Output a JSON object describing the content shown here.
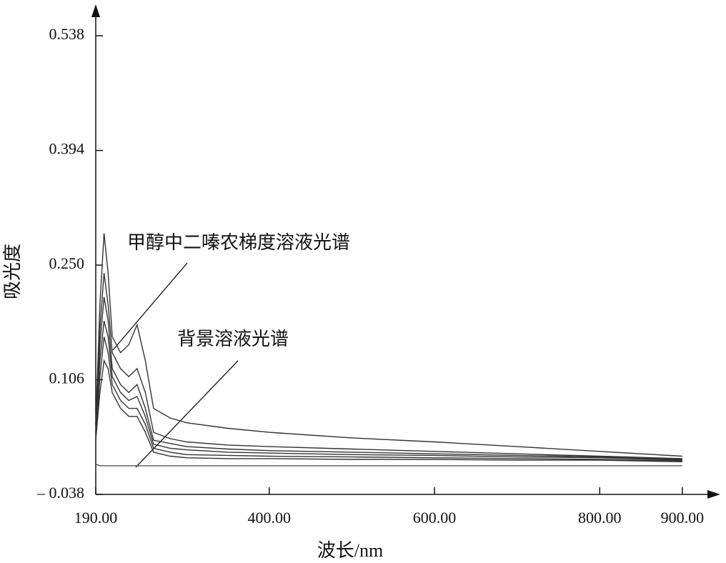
{
  "chart_data": {
    "type": "line",
    "xlabel": "波长/nm",
    "ylabel": "吸光度",
    "annotations": [
      "甲醇中二嗪农梯度溶液光谱",
      "背景溶液光谱"
    ],
    "x": [
      190,
      195,
      200,
      205,
      210,
      220,
      230,
      240,
      250,
      260,
      280,
      300,
      350,
      400,
      500,
      600,
      700,
      800,
      900
    ],
    "series": [
      {
        "color": "#333333",
        "values": [
          0.05,
          0.2,
          0.29,
          0.24,
          0.16,
          0.14,
          0.15,
          0.175,
          0.13,
          0.07,
          0.058,
          0.052,
          0.045,
          0.04,
          0.033,
          0.028,
          0.022,
          0.016,
          0.01
        ]
      },
      {
        "color": "#333333",
        "values": [
          0.05,
          0.17,
          0.24,
          0.2,
          0.14,
          0.12,
          0.11,
          0.12,
          0.09,
          0.04,
          0.032,
          0.028,
          0.024,
          0.022,
          0.019,
          0.016,
          0.013,
          0.01,
          0.007
        ]
      },
      {
        "color": "#333333",
        "values": [
          0.04,
          0.15,
          0.21,
          0.18,
          0.12,
          0.1,
          0.09,
          0.1,
          0.07,
          0.03,
          0.026,
          0.022,
          0.019,
          0.017,
          0.015,
          0.013,
          0.011,
          0.009,
          0.006
        ]
      },
      {
        "color": "#333333",
        "values": [
          0.04,
          0.13,
          0.18,
          0.16,
          0.11,
          0.09,
          0.08,
          0.085,
          0.06,
          0.025,
          0.02,
          0.018,
          0.015,
          0.014,
          0.012,
          0.011,
          0.009,
          0.008,
          0.005
        ]
      },
      {
        "color": "#333333",
        "values": [
          0.03,
          0.11,
          0.16,
          0.14,
          0.1,
          0.08,
          0.07,
          0.07,
          0.05,
          0.02,
          0.015,
          0.012,
          0.011,
          0.01,
          0.009,
          0.008,
          0.007,
          0.006,
          0.004
        ]
      },
      {
        "color": "#333333",
        "values": [
          0.03,
          0.09,
          0.13,
          0.12,
          0.09,
          0.07,
          0.06,
          0.06,
          0.04,
          0.015,
          0.01,
          0.008,
          0.007,
          0.007,
          0.006,
          0.006,
          0.005,
          0.005,
          0.003
        ]
      },
      {
        "color": "#555555",
        "values": [
          0.0,
          -0.002,
          -0.002,
          -0.002,
          -0.002,
          -0.002,
          -0.002,
          -0.002,
          -0.002,
          -0.002,
          -0.002,
          -0.002,
          -0.002,
          -0.002,
          -0.002,
          -0.002,
          -0.002,
          -0.002,
          -0.002
        ]
      }
    ],
    "xlim": [
      190,
      939
    ],
    "xticks": [
      {
        "value": 190,
        "label": "190.00"
      },
      {
        "value": 400,
        "label": "400.00"
      },
      {
        "value": 600,
        "label": "600.00"
      },
      {
        "value": 800,
        "label": "800.00"
      },
      {
        "value": 900,
        "label": "900.00"
      }
    ],
    "ylim": [
      -0.038,
      0.574
    ],
    "yticks": [
      {
        "value": -0.038,
        "label": "– 0.038"
      },
      {
        "value": 0.106,
        "label": "0.106"
      },
      {
        "value": 0.25,
        "label": "0.250"
      },
      {
        "value": 0.394,
        "label": "0.394"
      },
      {
        "value": 0.538,
        "label": "0.538"
      }
    ],
    "grid": false
  }
}
